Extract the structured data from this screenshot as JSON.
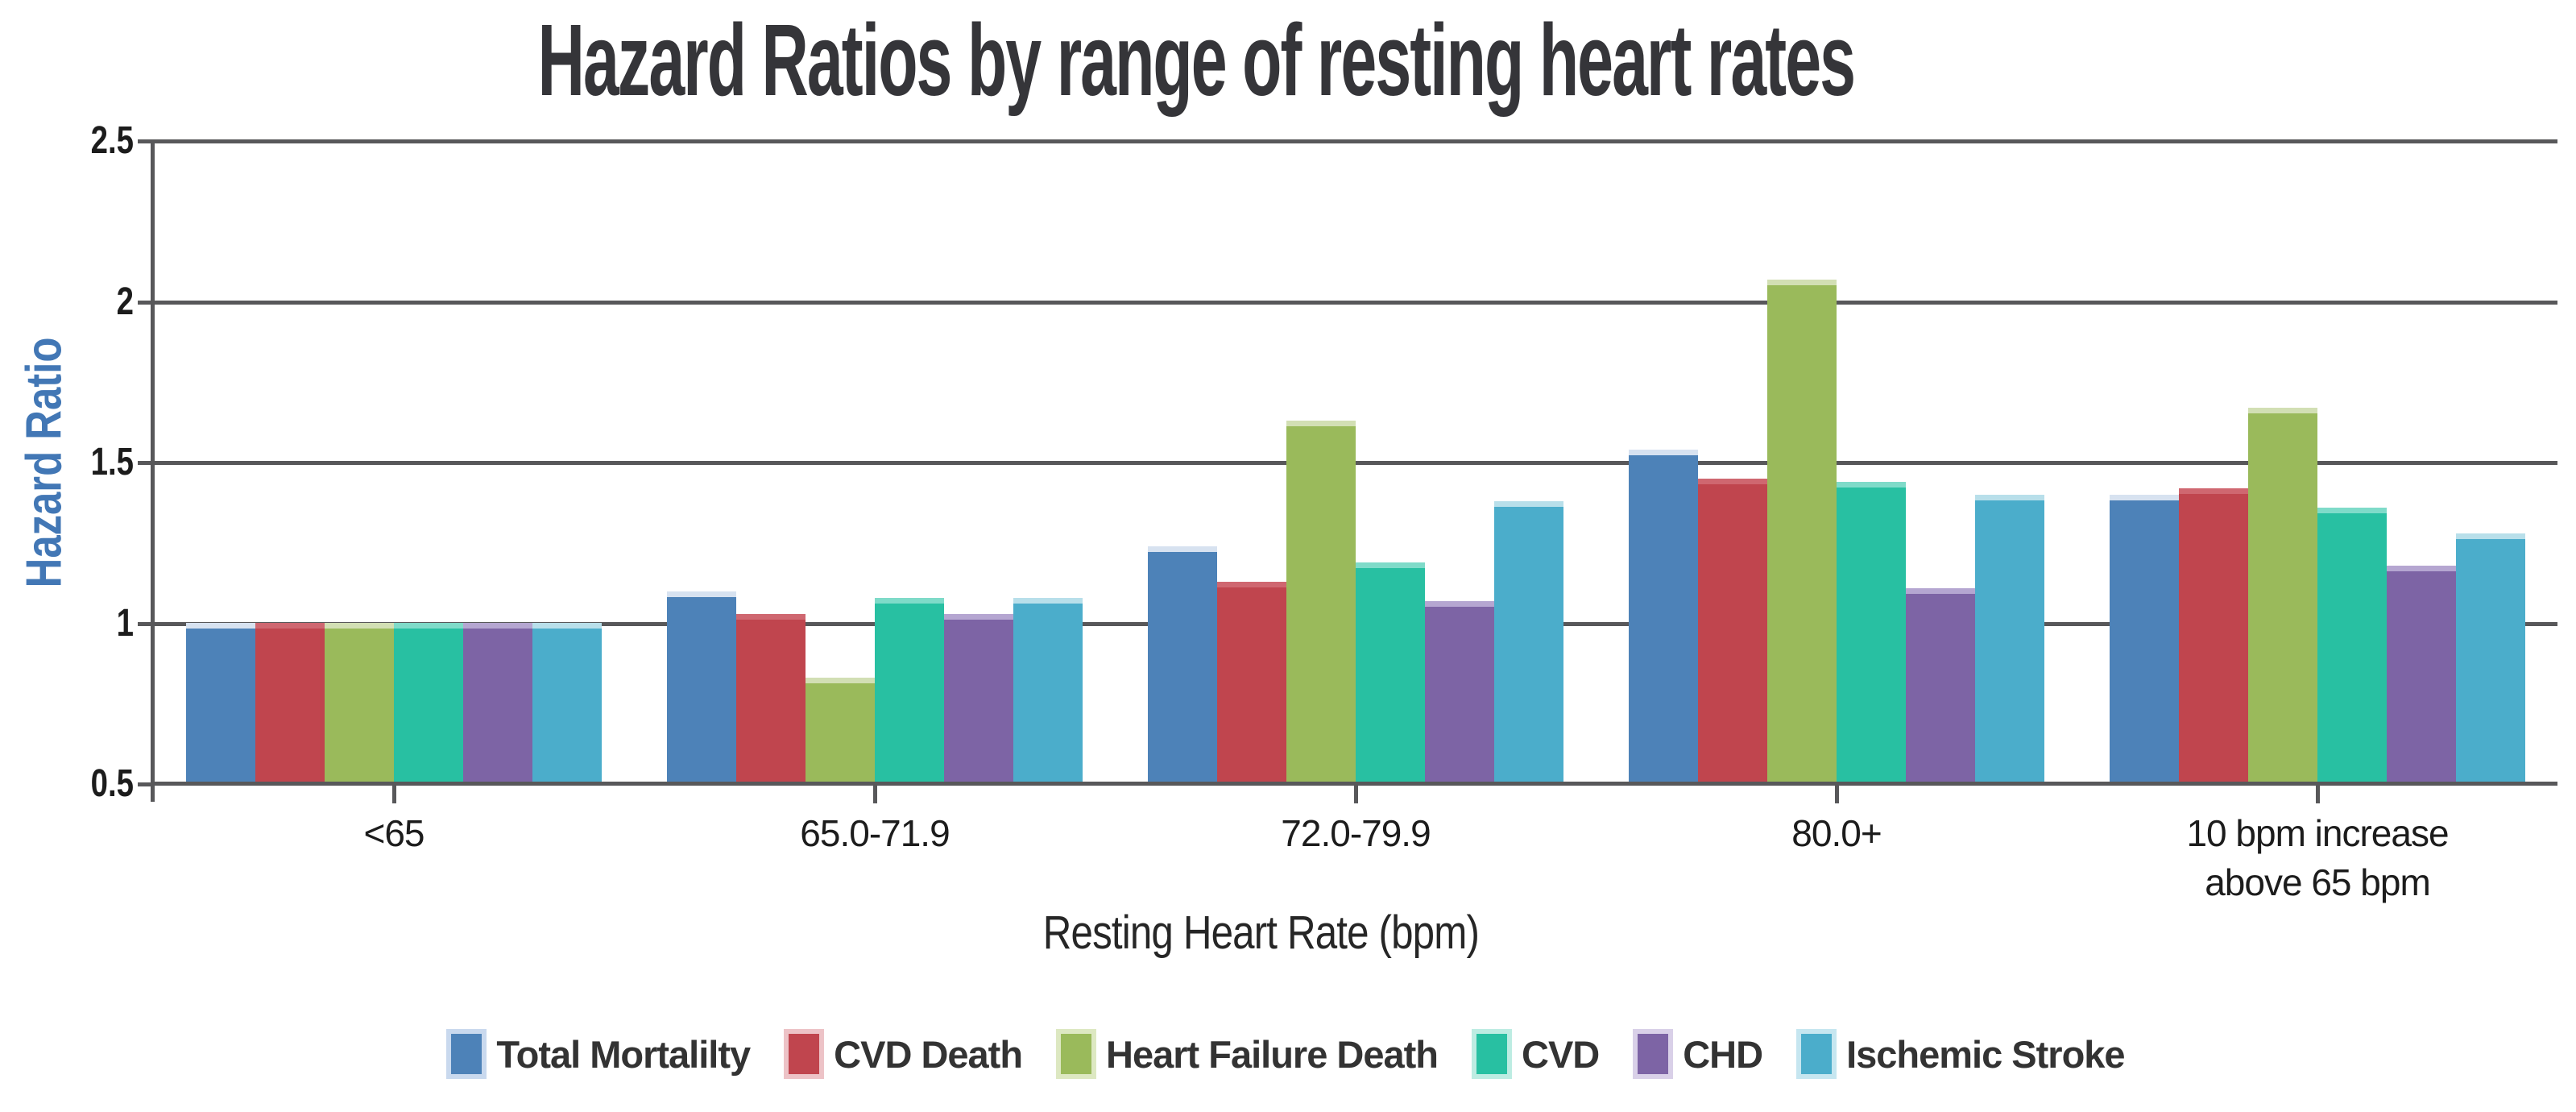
{
  "title": "Hazard Ratios by range of resting heart rates",
  "y_axis": {
    "title": "Hazard Ratio",
    "title_color": "#4277b5",
    "ticks": [
      {
        "label": "2.5",
        "value": 2.5
      },
      {
        "label": "2",
        "value": 2.0
      },
      {
        "label": "1.5",
        "value": 1.5
      },
      {
        "label": "1",
        "value": 1.0
      },
      {
        "label": "0.5",
        "value": 0.5
      }
    ]
  },
  "x_axis": {
    "title": "Resting Heart Rate (bpm)"
  },
  "grid_color": "#58585a",
  "chart_data": {
    "type": "bar",
    "title": "Hazard Ratios by range of resting heart rates",
    "xlabel": "Resting Heart Rate (bpm)",
    "ylabel": "Hazard Ratio",
    "ylim": [
      0.5,
      2.5
    ],
    "grid": true,
    "legend_position": "bottom",
    "categories": [
      "<65",
      "65.0-71.9",
      "72.0-79.9",
      "80.0+",
      "10 bpm increase\nabove 65 bpm"
    ],
    "series": [
      {
        "name": "Total Mortalilty",
        "color": "#4d82b8",
        "cap_color": "#d7e2f0",
        "halo_color": "#c9d9ee",
        "values": [
          1.0,
          1.1,
          1.24,
          1.54,
          1.4
        ]
      },
      {
        "name": "CVD Death",
        "color": "#c0454e",
        "cap_color": "#cf6770",
        "halo_color": "#edc3c7",
        "values": [
          1.0,
          1.03,
          1.13,
          1.45,
          1.42
        ]
      },
      {
        "name": "Heart Failure Death",
        "color": "#9aba5b",
        "cap_color": "#d2dfb4",
        "halo_color": "#dde8c2",
        "values": [
          1.0,
          0.83,
          1.63,
          2.07,
          1.67
        ]
      },
      {
        "name": "CVD",
        "color": "#28c0a2",
        "cap_color": "#7fdbc9",
        "halo_color": "#bdece2",
        "values": [
          1.0,
          1.08,
          1.19,
          1.44,
          1.36
        ]
      },
      {
        "name": "CHD",
        "color": "#7d64a5",
        "cap_color": "#b5a6d1",
        "halo_color": "#d9d0e8",
        "values": [
          1.0,
          1.03,
          1.07,
          1.11,
          1.18
        ]
      },
      {
        "name": "Ischemic Stroke",
        "color": "#4badcb",
        "cap_color": "#b8dfea",
        "halo_color": "#c6e6f0",
        "values": [
          1.0,
          1.08,
          1.38,
          1.4,
          1.28
        ]
      }
    ]
  }
}
